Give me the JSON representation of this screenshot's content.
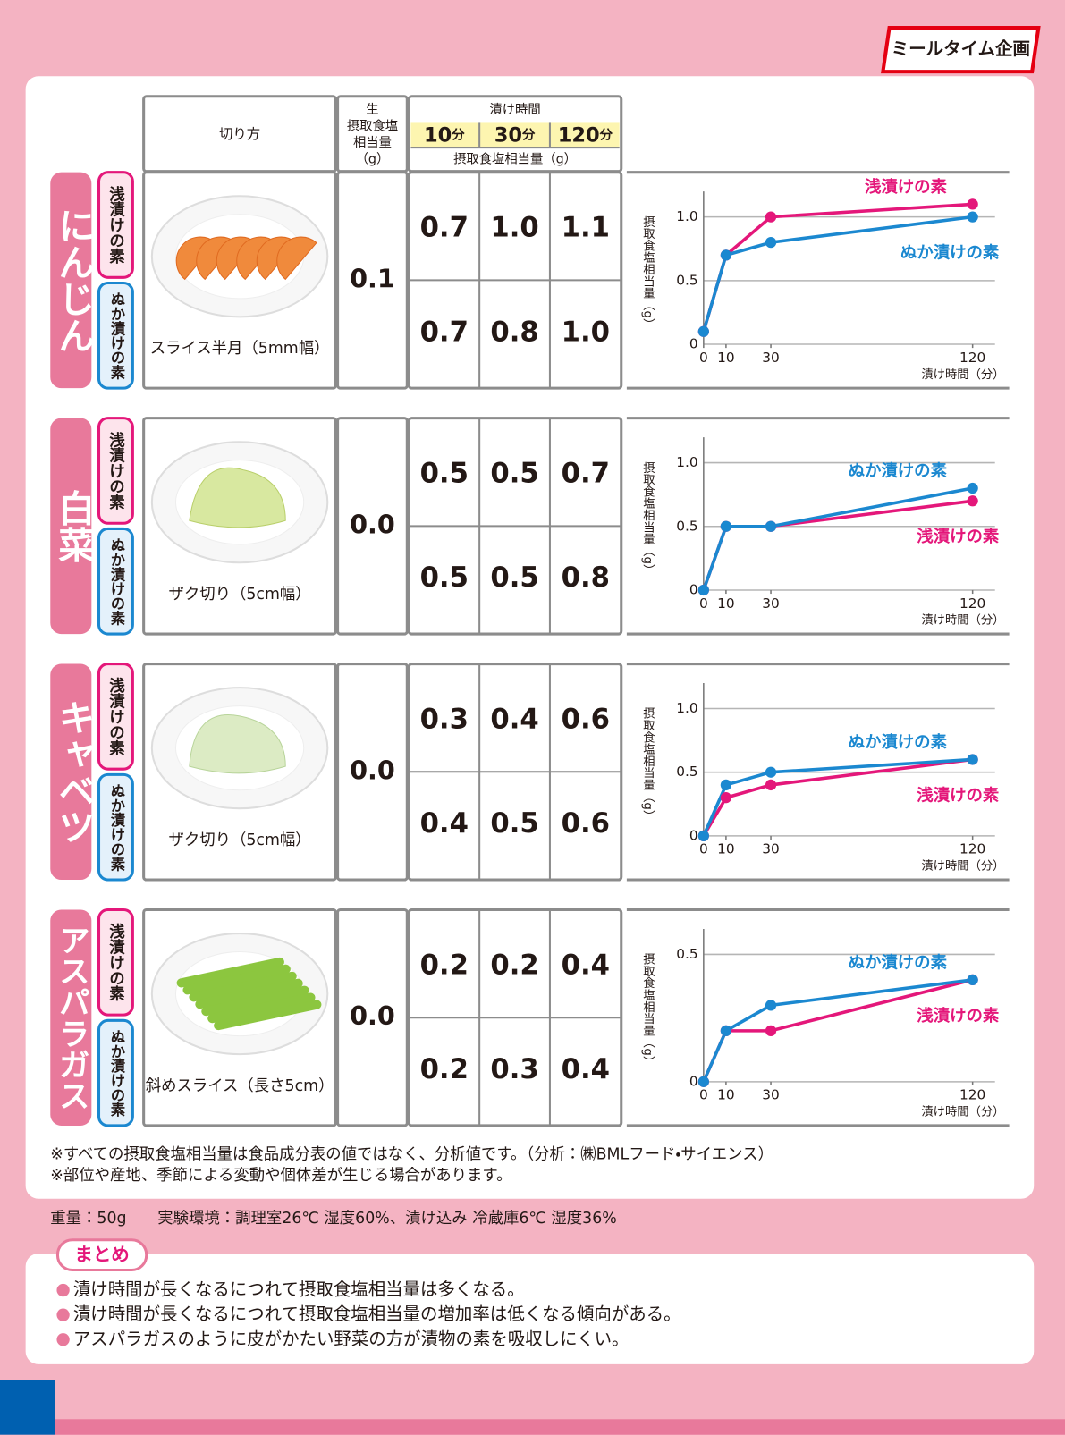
{
  "header": {
    "brand": "ミールタイム企画"
  },
  "table": {
    "headers": {
      "cut": "切り方",
      "raw": [
        "生",
        "摂取食塩",
        "相当量",
        "（g）"
      ],
      "time": "漬け時間",
      "time_columns": [
        {
          "num": "10",
          "unit": "分"
        },
        {
          "num": "30",
          "unit": "分"
        },
        {
          "num": "120",
          "unit": "分"
        }
      ],
      "unit": "摂取食塩相当量（g）"
    },
    "methods": [
      "浅漬けの素",
      "ぬか漬けの素"
    ],
    "rows": [
      {
        "name": "にんじん",
        "cut": "スライス半月（5mm幅）",
        "raw": "0.1",
        "values": [
          [
            "0.7",
            "1.0",
            "1.1"
          ],
          [
            "0.7",
            "0.8",
            "1.0"
          ]
        ]
      },
      {
        "name": "白菜",
        "cut": "ザク切り（5cm幅）",
        "raw": "0.0",
        "values": [
          [
            "0.5",
            "0.5",
            "0.7"
          ],
          [
            "0.5",
            "0.5",
            "0.8"
          ]
        ]
      },
      {
        "name": "キャベツ",
        "cut": "ザク切り（5cm幅）",
        "raw": "0.0",
        "values": [
          [
            "0.3",
            "0.4",
            "0.6"
          ],
          [
            "0.4",
            "0.5",
            "0.6"
          ]
        ]
      },
      {
        "name": "アスパラガス",
        "cut": "斜めスライス（長さ5cm）",
        "raw": "0.0",
        "values": [
          [
            "0.2",
            "0.2",
            "0.4"
          ],
          [
            "0.2",
            "0.3",
            "0.4"
          ]
        ]
      }
    ]
  },
  "chart_data": [
    {
      "type": "line",
      "y_label": "摂取食塩相当量（g）",
      "x_label": "漬け時間（分）",
      "x": [
        0,
        10,
        30,
        120
      ],
      "xlim": [
        0,
        130
      ],
      "xticks": [
        0,
        10,
        30,
        120
      ],
      "ylim": [
        0,
        1.2
      ],
      "yticks": [
        0,
        0.5,
        {
          "value": 1,
          "label": "1.0"
        }
      ],
      "series": [
        {
          "name": "浅漬けの素",
          "color": "#e4177a",
          "values": [
            0.1,
            0.7,
            1.0,
            1.1
          ]
        },
        {
          "name": "ぬか漬けの素",
          "color": "#1b88d0",
          "values": [
            0.1,
            0.7,
            0.8,
            1.0
          ]
        }
      ]
    },
    {
      "type": "line",
      "y_label": "摂取食塩相当量（g）",
      "x_label": "漬け時間（分）",
      "x": [
        0,
        10,
        30,
        120
      ],
      "xlim": [
        0,
        130
      ],
      "xticks": [
        0,
        10,
        30,
        120
      ],
      "ylim": [
        0,
        1.2
      ],
      "yticks": [
        0,
        0.5,
        {
          "value": 1,
          "label": "1.0"
        }
      ],
      "series": [
        {
          "name": "浅漬けの素",
          "color": "#e4177a",
          "values": [
            0,
            0.5,
            0.5,
            0.7
          ]
        },
        {
          "name": "ぬか漬けの素",
          "color": "#1b88d0",
          "values": [
            0,
            0.5,
            0.5,
            0.8
          ]
        }
      ]
    },
    {
      "type": "line",
      "y_label": "摂取食塩相当量（g）",
      "x_label": "漬け時間（分）",
      "x": [
        0,
        10,
        30,
        120
      ],
      "xlim": [
        0,
        130
      ],
      "xticks": [
        0,
        10,
        30,
        120
      ],
      "ylim": [
        0,
        1.2
      ],
      "yticks": [
        0,
        0.5,
        {
          "value": 1,
          "label": "1.0"
        }
      ],
      "series": [
        {
          "name": "浅漬けの素",
          "color": "#e4177a",
          "values": [
            0,
            0.3,
            0.4,
            0.6
          ]
        },
        {
          "name": "ぬか漬けの素",
          "color": "#1b88d0",
          "values": [
            0,
            0.4,
            0.5,
            0.6
          ]
        }
      ]
    },
    {
      "type": "line",
      "y_label": "摂取食塩相当量（g）",
      "x_label": "漬け時間（分）",
      "x": [
        0,
        10,
        30,
        120
      ],
      "xlim": [
        0,
        130
      ],
      "xticks": [
        0,
        10,
        30,
        120
      ],
      "ylim": [
        0,
        0.6
      ],
      "yticks": [
        0,
        0.5
      ],
      "series": [
        {
          "name": "浅漬けの素",
          "color": "#e4177a",
          "values": [
            0,
            0.2,
            0.2,
            0.4
          ]
        },
        {
          "name": "ぬか漬けの素",
          "color": "#1b88d0",
          "values": [
            0,
            0.2,
            0.3,
            0.4
          ]
        }
      ]
    }
  ],
  "notes": [
    "※すべての摂取食塩相当量は食品成分表の値ではなく、分析値です。（分析：㈱BMLフード・サイエンス）",
    "※部位や産地、季節による変動や個体差が生じる場合があります。"
  ],
  "conditions": "重量：50g　　実験環境：調理室26℃ 湿度60%、漬け込み 冷蔵庫6℃ 湿度36%",
  "summary": {
    "title": "まとめ",
    "items": [
      "漬け時間が長くなるにつれて摂取食塩相当量は多くなる。",
      "漬け時間が長くなるにつれて摂取食塩相当量の増加率は低くなる傾向がある。",
      "アスパラガスのように皮がかたい野菜の方が漬物の素を吸収しにくい。"
    ]
  }
}
